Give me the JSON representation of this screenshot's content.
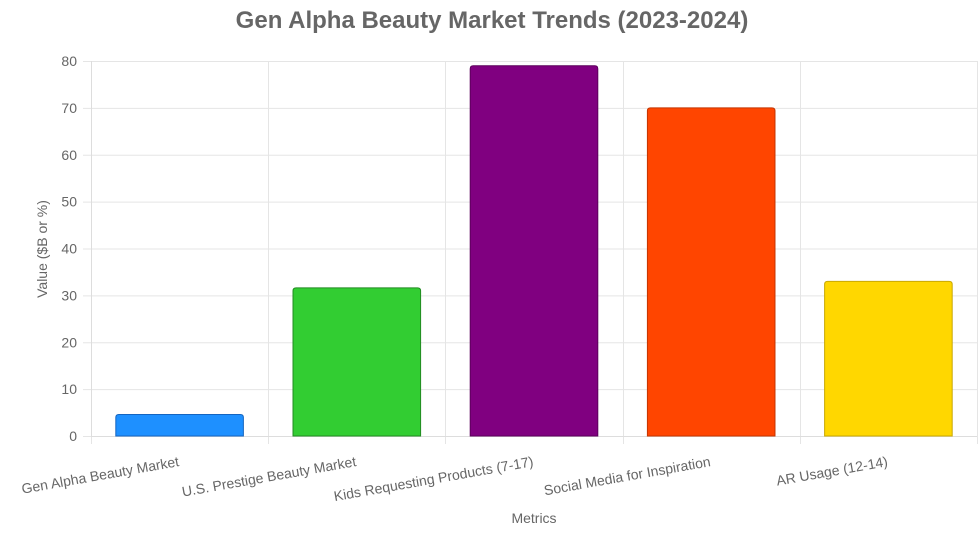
{
  "chart_data": {
    "type": "bar",
    "title": "Gen Alpha Beauty Market Trends (2023-2024)",
    "xlabel": "Metrics",
    "ylabel": "Value ($B or %)",
    "categories": [
      "Gen Alpha Beauty Market",
      "U.S. Prestige Beauty Market",
      "Kids Requesting Products (7-17)",
      "Social Media for Inspiration",
      "AR Usage (12-14)"
    ],
    "values": [
      4.6,
      31.6,
      79,
      70,
      33
    ],
    "colors": [
      "#1e90ff",
      "#32cd32",
      "#800080",
      "#ff4500",
      "#ffd700"
    ],
    "border_colors": [
      "#1565c0",
      "#228b22",
      "#5c005c",
      "#c43500",
      "#c9a800"
    ],
    "ylim": [
      0,
      80
    ],
    "yticks": [
      0,
      10,
      20,
      30,
      40,
      50,
      60,
      70,
      80
    ],
    "grid": true,
    "legend": "none"
  }
}
